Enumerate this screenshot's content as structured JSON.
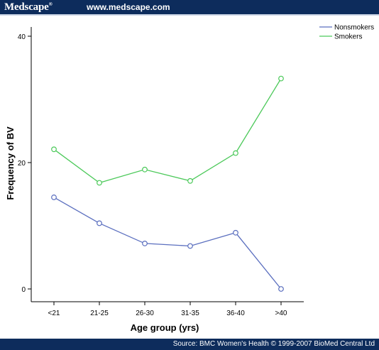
{
  "header": {
    "brand": "Medscape",
    "brand_mark": "®",
    "url": "www.medscape.com"
  },
  "footer": {
    "source": "Source: BMC Women's Health © 1999-2007 BioMed Central Ltd"
  },
  "chart_data": {
    "type": "line",
    "title": "",
    "xlabel": "Age group (yrs)",
    "ylabel": "Frequency of BV",
    "categories": [
      "<21",
      "21-25",
      "26-30",
      "31-35",
      "36-40",
      ">40"
    ],
    "ylim": [
      0,
      40
    ],
    "yticks": [
      0,
      20,
      40
    ],
    "grid": false,
    "legend_position": "top-right",
    "series": [
      {
        "name": "Nonsmokers",
        "color": "#5b6fbf",
        "values": [
          14.5,
          10.4,
          7.2,
          6.8,
          8.9,
          0
        ]
      },
      {
        "name": "Smokers",
        "color": "#4cc95a",
        "values": [
          22.1,
          16.8,
          18.9,
          17.1,
          21.5,
          33.3
        ]
      }
    ]
  }
}
